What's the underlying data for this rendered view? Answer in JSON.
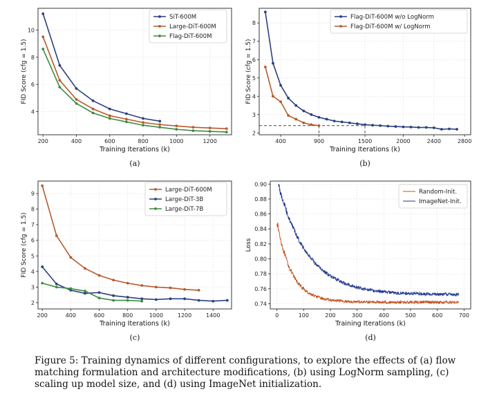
{
  "caption": "Figure 5: Training dynamics of different configurations, to explore the effects of (a) flow matching formulation and architecture modifications, (b) using LogNorm sampling, (c) scaling up model size, and (d) using ImageNet initialization.",
  "colors": {
    "blue": "#2b3f7e",
    "orange": "#b55a2c",
    "green": "#3d8a3f",
    "dark_orange": "#c0501f",
    "dark_blue": "#1f3690"
  },
  "chart_data": [
    {
      "id": "a",
      "type": "line",
      "panel_label": "(a)",
      "xlabel": "Training Iterations (k)",
      "ylabel": "FID Score (cfg = 1.5)",
      "xlim": [
        170,
        1330
      ],
      "ylim": [
        2.3,
        11.6
      ],
      "xticks": [
        200,
        400,
        600,
        800,
        1000,
        1200
      ],
      "yticks": [
        4,
        6,
        8,
        10
      ],
      "grid": true,
      "legend": "top-right",
      "series": [
        {
          "name": "SiT-600M",
          "color": "#2b3f7e",
          "x": [
            200,
            300,
            400,
            500,
            600,
            700,
            800,
            900
          ],
          "y": [
            11.2,
            7.4,
            5.7,
            4.8,
            4.2,
            3.85,
            3.5,
            3.3
          ]
        },
        {
          "name": "Large-DiT-600M",
          "color": "#b55a2c",
          "x": [
            200,
            300,
            400,
            500,
            600,
            700,
            800,
            900,
            1000,
            1100,
            1200,
            1300
          ],
          "y": [
            9.5,
            6.3,
            4.9,
            4.2,
            3.7,
            3.45,
            3.2,
            3.05,
            2.95,
            2.85,
            2.8,
            2.75
          ]
        },
        {
          "name": "Flag-DiT-600M",
          "color": "#3d8a3f",
          "x": [
            200,
            300,
            400,
            500,
            600,
            700,
            800,
            900,
            1000,
            1100,
            1200,
            1300
          ],
          "y": [
            8.6,
            5.8,
            4.6,
            3.9,
            3.5,
            3.25,
            3.0,
            2.85,
            2.7,
            2.6,
            2.55,
            2.5
          ]
        }
      ]
    },
    {
      "id": "b",
      "type": "line",
      "panel_label": "(b)",
      "xlabel": "Training Iterations (k)",
      "ylabel": "FID Score (cfg = 1.5)",
      "xlim": [
        120,
        2880
      ],
      "ylim": [
        1.9,
        8.8
      ],
      "xticks": [
        400,
        900,
        1500,
        2000,
        2400,
        2800
      ],
      "yticks": [
        2,
        3,
        4,
        5,
        6,
        7,
        8
      ],
      "grid": true,
      "legend": "top-right",
      "reference_lines": {
        "y": 2.4,
        "x": [
          900,
          1500
        ]
      },
      "series": [
        {
          "name": "Flag-DiT-600M w/o LogNorm",
          "color": "#2b3f7e",
          "x": [
            200,
            300,
            400,
            500,
            600,
            700,
            800,
            900,
            1000,
            1100,
            1200,
            1300,
            1400,
            1500,
            1600,
            1700,
            1800,
            1900,
            2000,
            2100,
            2200,
            2300,
            2400,
            2500,
            2600,
            2700
          ],
          "y": [
            8.6,
            5.8,
            4.6,
            3.9,
            3.5,
            3.2,
            3.0,
            2.85,
            2.75,
            2.65,
            2.6,
            2.55,
            2.5,
            2.45,
            2.42,
            2.4,
            2.37,
            2.35,
            2.33,
            2.32,
            2.3,
            2.3,
            2.28,
            2.2,
            2.22,
            2.2
          ]
        },
        {
          "name": "Flag-DiT-600M w/ LogNorm",
          "color": "#b55a2c",
          "x": [
            200,
            300,
            400,
            500,
            600,
            700,
            800,
            900
          ],
          "y": [
            5.6,
            4.0,
            3.7,
            2.95,
            2.75,
            2.55,
            2.45,
            2.4
          ]
        }
      ]
    },
    {
      "id": "c",
      "type": "line",
      "panel_label": "(c)",
      "xlabel": "Training Iterations (k)",
      "ylabel": "FID Score (cfg = 1.5)",
      "xlim": [
        170,
        1530
      ],
      "ylim": [
        1.6,
        9.8
      ],
      "xticks": [
        200,
        400,
        600,
        800,
        1000,
        1200,
        1400
      ],
      "yticks": [
        2,
        3,
        4,
        5,
        6,
        7,
        8,
        9
      ],
      "grid": true,
      "legend": "top-right",
      "series": [
        {
          "name": "Large-DiT-600M",
          "color": "#b55a2c",
          "x": [
            200,
            300,
            400,
            500,
            600,
            700,
            800,
            900,
            1000,
            1100,
            1200,
            1300
          ],
          "y": [
            9.5,
            6.3,
            4.9,
            4.2,
            3.75,
            3.45,
            3.25,
            3.1,
            3.0,
            2.95,
            2.85,
            2.8
          ]
        },
        {
          "name": "Large-DiT-3B",
          "color": "#2b3f7e",
          "x": [
            200,
            300,
            400,
            500,
            600,
            700,
            800,
            900,
            1000,
            1100,
            1200,
            1300,
            1400,
            1500
          ],
          "y": [
            4.3,
            3.2,
            2.8,
            2.6,
            2.65,
            2.45,
            2.35,
            2.25,
            2.2,
            2.25,
            2.25,
            2.15,
            2.1,
            2.15
          ]
        },
        {
          "name": "Large-DiT-7B",
          "color": "#3d8a3f",
          "x": [
            200,
            300,
            400,
            500,
            600,
            700,
            800,
            900
          ],
          "y": [
            3.25,
            3.0,
            2.9,
            2.75,
            2.3,
            2.15,
            2.15,
            2.1
          ]
        }
      ]
    },
    {
      "id": "d",
      "type": "line",
      "panel_label": "(d)",
      "xlabel": "Training Iterations (k)",
      "ylabel": "Loss",
      "xlim": [
        -25,
        725
      ],
      "ylim": [
        0.733,
        0.904
      ],
      "xticks": [
        0,
        100,
        200,
        300,
        400,
        500,
        600,
        700
      ],
      "yticks": [
        0.74,
        0.76,
        0.78,
        0.8,
        0.82,
        0.84,
        0.86,
        0.88,
        0.9
      ],
      "grid": true,
      "legend": "top-right",
      "series": [
        {
          "name": "Random-Init.",
          "color": "#c0501f",
          "kind": "noisy",
          "x_range": [
            0,
            680
          ],
          "start": 0.85,
          "end": 0.742,
          "decay": 55,
          "noise": 0.0018
        },
        {
          "name": "ImageNet-Init.",
          "color": "#1f3690",
          "kind": "noisy",
          "x_range": [
            5,
            680
          ],
          "start": 0.9,
          "end": 0.752,
          "decay": 110,
          "noise": 0.0022
        }
      ]
    }
  ]
}
